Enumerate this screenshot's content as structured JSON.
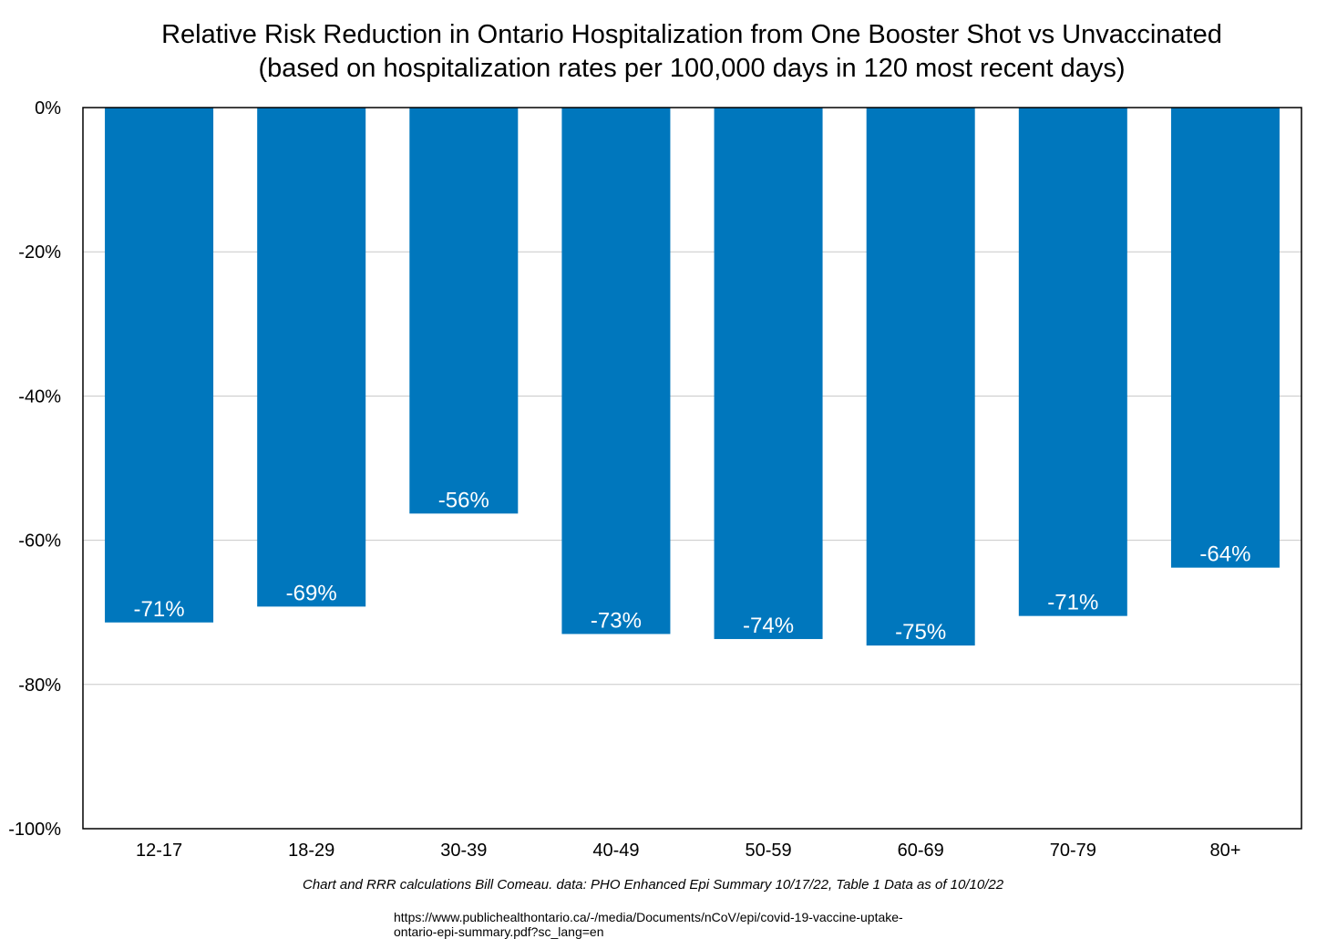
{
  "title": "Relative Risk Reduction in Ontario Hospitalization from One Booster Shot vs Unvaccinated",
  "subtitle": "(based on hospitalization rates per 100,000 days in 120 most recent days)",
  "footnote": "Chart and RRR calculations Bill Comeau. data: PHO Enhanced Epi Summary 10/17/22, Table 1 Data as of 10/10/22",
  "source_url_lines": [
    "https://www.publichealthontario.ca/-/media/Documents/nCoV/epi/covid-19-vaccine-uptake-",
    "ontario-epi-summary.pdf?sc_lang=en"
  ],
  "chart_data": {
    "type": "bar",
    "categories": [
      "12-17",
      "18-29",
      "30-39",
      "40-49",
      "50-59",
      "60-69",
      "70-79",
      "80+"
    ],
    "values": [
      -71.4,
      -69.2,
      -56.3,
      -73.0,
      -73.7,
      -74.6,
      -70.5,
      -63.8
    ],
    "data_labels": [
      "-71%",
      "-69%",
      "-56%",
      "-73%",
      "-74%",
      "-75%",
      "-71%",
      "-64%"
    ],
    "ylim": [
      -100,
      0
    ],
    "yticks": [
      0,
      -20,
      -40,
      -60,
      -80,
      -100
    ],
    "ytick_labels": [
      "0%",
      "-20%",
      "-40%",
      "-60%",
      "-80%",
      "-100%"
    ],
    "grid": true,
    "bar_color": "#0077BD",
    "label_color": "#FFFFFF",
    "xlabel": "",
    "ylabel": ""
  }
}
